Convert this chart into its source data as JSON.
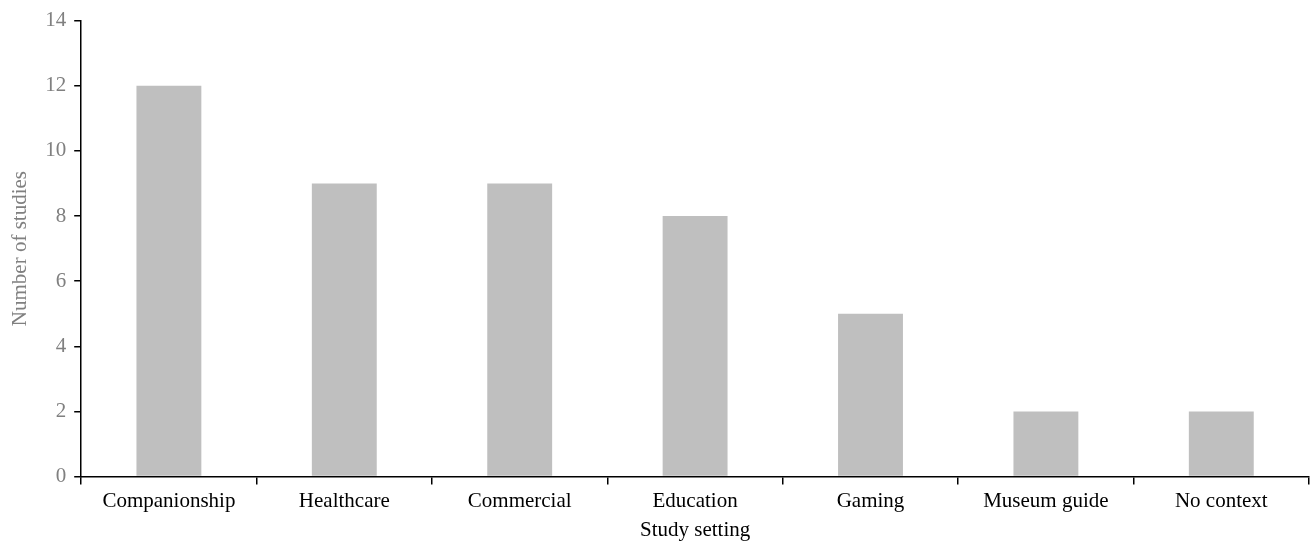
{
  "chart_data": {
    "type": "bar",
    "xlabel": "Study setting",
    "ylabel": "Number of studies",
    "categories": [
      "Companionship",
      "Healthcare",
      "Commercial",
      "Education",
      "Gaming",
      "Museum guide",
      "No context"
    ],
    "values": [
      12,
      9,
      9,
      8,
      5,
      2,
      2
    ],
    "color": "#bfbfbf",
    "ylim": [
      0,
      14
    ],
    "yticks": [
      0,
      2,
      4,
      6,
      8,
      10,
      12,
      14
    ],
    "grid": false,
    "legend": false
  }
}
